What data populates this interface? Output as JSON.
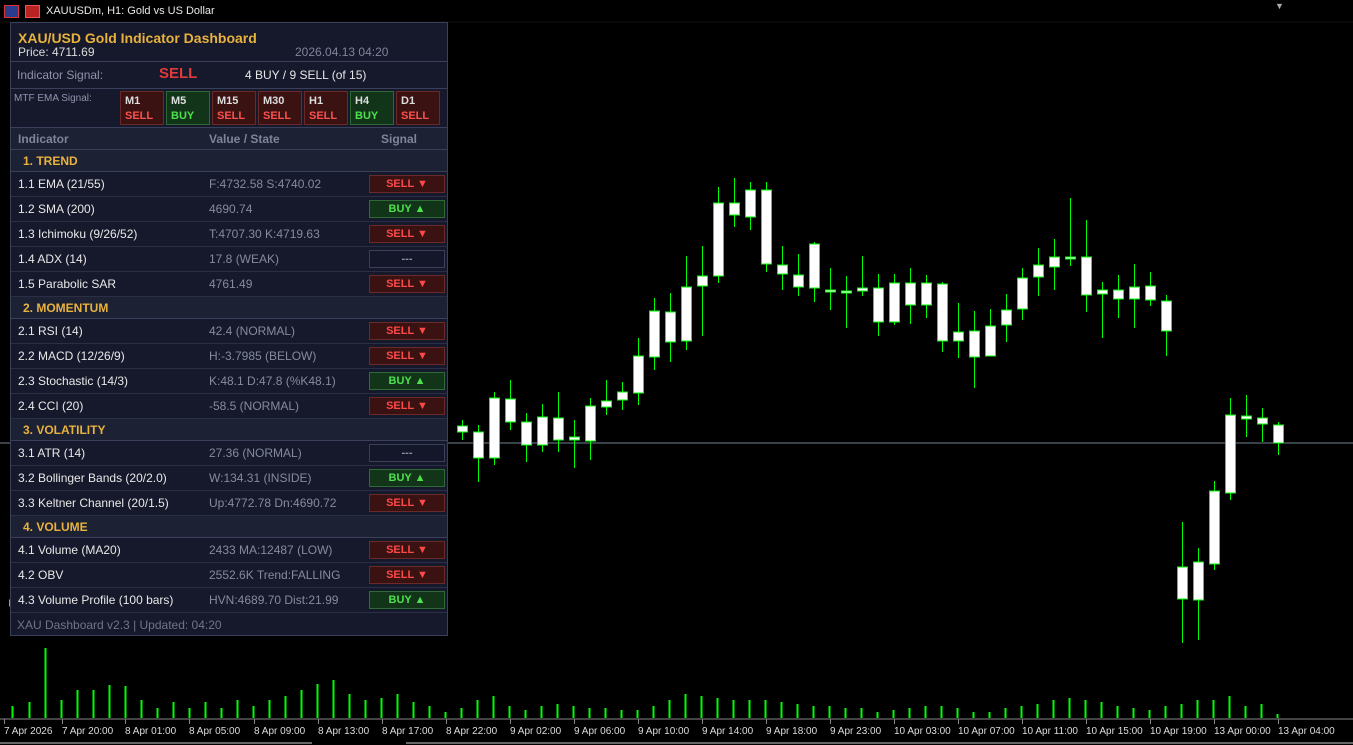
{
  "window": {
    "title": "XAUUSDm, H1:  Gold vs US Dollar"
  },
  "colors": {
    "bull": "#00ff00",
    "bear_fill": "#ffffff",
    "price_line": "#708090",
    "panel_bg": "#16192b",
    "accent": "#e8b23c",
    "sell": "#ff4848",
    "buy": "#4ee04e"
  },
  "dashboard": {
    "title": "XAU/USD  Gold Indicator Dashboard",
    "price": "Price: 4711.69",
    "timestamp": "2026.04.13 04:20",
    "signal_label": "Indicator Signal:",
    "signal_value": "SELL",
    "signal_counts": "4 BUY / 9 SELL  (of 15)",
    "mtf_label": "MTF EMA Signal:",
    "mtf": [
      {
        "tf": "M1",
        "sig": "SELL"
      },
      {
        "tf": "M5",
        "sig": "BUY"
      },
      {
        "tf": "M15",
        "sig": "SELL"
      },
      {
        "tf": "M30",
        "sig": "SELL"
      },
      {
        "tf": "H1",
        "sig": "SELL"
      },
      {
        "tf": "H4",
        "sig": "BUY"
      },
      {
        "tf": "D1",
        "sig": "SELL"
      }
    ],
    "columns": {
      "indicator": "Indicator",
      "value": "Value / State",
      "signal": "Signal"
    },
    "sections": [
      {
        "title": "1. TREND",
        "rows": [
          {
            "name": "1.1  EMA (21/55)",
            "value": "F:4732.58  S:4740.02",
            "signal": "SELL ▼",
            "type": "sell"
          },
          {
            "name": "1.2  SMA (200)",
            "value": "4690.74",
            "signal": "BUY  ▲",
            "type": "buy"
          },
          {
            "name": "1.3  Ichimoku (9/26/52)",
            "value": "T:4707.30  K:4719.63",
            "signal": "SELL ▼",
            "type": "sell"
          },
          {
            "name": "1.4  ADX (14)",
            "value": "17.8 (WEAK)",
            "signal": "---",
            "type": "neutral"
          },
          {
            "name": "1.5  Parabolic SAR",
            "value": "4761.49",
            "signal": "SELL ▼",
            "type": "sell"
          }
        ]
      },
      {
        "title": "2. MOMENTUM",
        "rows": [
          {
            "name": "2.1  RSI (14)",
            "value": "42.4 (NORMAL)",
            "signal": "SELL ▼",
            "type": "sell"
          },
          {
            "name": "2.2  MACD (12/26/9)",
            "value": "H:-3.7985 (BELOW)",
            "signal": "SELL ▼",
            "type": "sell"
          },
          {
            "name": "2.3  Stochastic (14/3)",
            "value": "K:48.1  D:47.8 (%K48.1)",
            "signal": "BUY  ▲",
            "type": "buy"
          },
          {
            "name": "2.4  CCI (20)",
            "value": "-58.5 (NORMAL)",
            "signal": "SELL ▼",
            "type": "sell"
          }
        ]
      },
      {
        "title": "3. VOLATILITY",
        "rows": [
          {
            "name": "3.1  ATR (14)",
            "value": "27.36 (NORMAL)",
            "signal": "---",
            "type": "neutral"
          },
          {
            "name": "3.2  Bollinger Bands (20/2.0)",
            "value": "W:134.31 (INSIDE)",
            "signal": "BUY  ▲",
            "type": "buy"
          },
          {
            "name": "3.3  Keltner Channel (20/1.5)",
            "value": "Up:4772.78  Dn:4690.72",
            "signal": "SELL ▼",
            "type": "sell"
          }
        ]
      },
      {
        "title": "4. VOLUME",
        "rows": [
          {
            "name": "4.1  Volume (MA20)",
            "value": "2433  MA:12487 (LOW)",
            "signal": "SELL ▼",
            "type": "sell"
          },
          {
            "name": "4.2  OBV",
            "value": "2552.6K  Trend:FALLING",
            "signal": "SELL ▼",
            "type": "sell"
          },
          {
            "name": "4.3  Volume Profile (100 bars)",
            "value": "HVN:4689.70  Dist:21.99",
            "signal": "BUY  ▲",
            "type": "buy"
          }
        ]
      }
    ],
    "footer": "XAU Dashboard v2.3  |  Updated: 04:20"
  },
  "time_axis": [
    "7 Apr 2026",
    "7 Apr 20:00",
    "8 Apr 01:00",
    "8 Apr 05:00",
    "8 Apr 09:00",
    "8 Apr 13:00",
    "8 Apr 17:00",
    "8 Apr 22:00",
    "9 Apr 02:00",
    "9 Apr 06:00",
    "9 Apr 10:00",
    "9 Apr 14:00",
    "9 Apr 18:00",
    "9 Apr 23:00",
    "10 Apr 03:00",
    "10 Apr 07:00",
    "10 Apr 11:00",
    "10 Apr 15:00",
    "10 Apr 19:00",
    "13 Apr 00:00",
    "13 Apr 04:00"
  ]
}
